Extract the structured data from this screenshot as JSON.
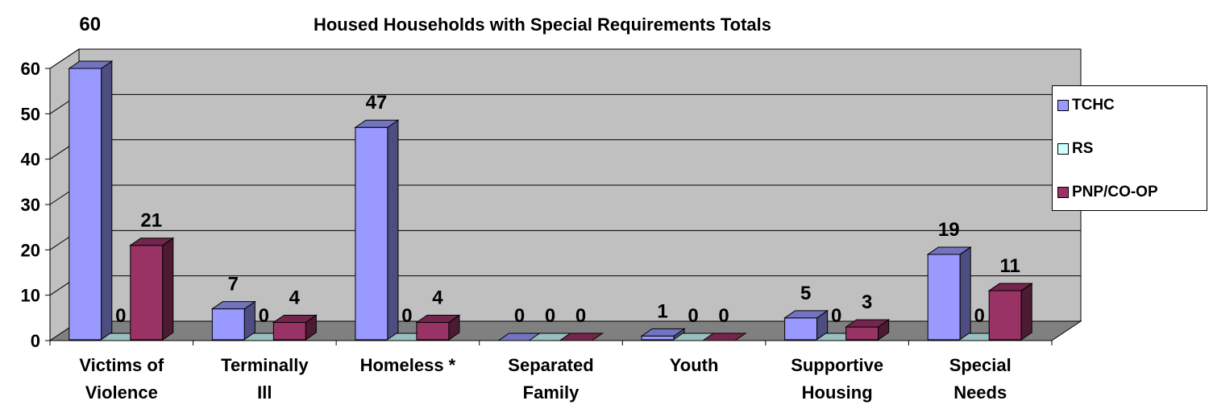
{
  "chart_data": {
    "type": "bar",
    "title": "Housed Households with Special Requirements Totals",
    "categories": [
      [
        "Victims of",
        "Violence"
      ],
      [
        "Terminally",
        "Ill"
      ],
      [
        "Homeless *"
      ],
      [
        "Separated",
        "Family"
      ],
      [
        "Youth"
      ],
      [
        "Supportive",
        "Housing"
      ],
      [
        "Special",
        "Needs"
      ]
    ],
    "series": [
      {
        "name": "TCHC",
        "values": [
          60,
          7,
          47,
          0,
          1,
          5,
          19
        ],
        "color": "#9999FF"
      },
      {
        "name": "RS",
        "values": [
          0,
          0,
          0,
          0,
          0,
          0,
          0
        ],
        "color": "#CCFFFF"
      },
      {
        "name": "PNP/CO-OP",
        "values": [
          21,
          4,
          4,
          0,
          0,
          3,
          11
        ],
        "color": "#993366"
      }
    ],
    "ylim": [
      0,
      60
    ],
    "yticks": [
      "0",
      "10",
      "20",
      "30",
      "40",
      "50",
      "60"
    ],
    "grid": true,
    "legend": "right",
    "wall_color": "#C0C0C0",
    "floor_color": "#808080"
  }
}
